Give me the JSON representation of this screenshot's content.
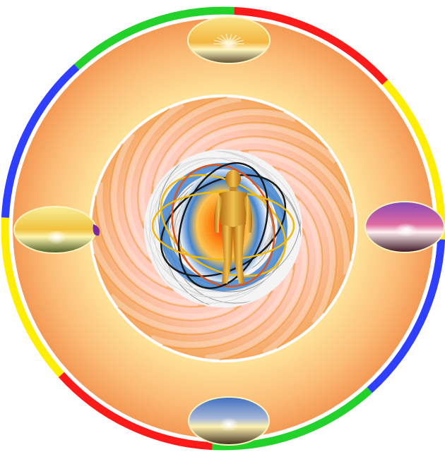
{
  "image": {
    "subject": "mandala-with-human-figure",
    "colors": {
      "ring_segments": [
        "#ff1a1a",
        "#ffee00",
        "#2f3fff",
        "#22d22a",
        "#ff1a1a",
        "#ffee00",
        "#2f3fff",
        "#22d22a"
      ],
      "outer_disc_inner": "#fff8c8",
      "outer_disc_outer": "#f7a15a",
      "spiral_light": "#ffd1c8",
      "spiral_dark": "#f0922e",
      "core_blue": "#3a7fd0",
      "core_fire": "#ff6a10",
      "figure_gold": "#e8a832",
      "orbit_colors": [
        "#1a1a1a",
        "#f2b90a",
        "#e0561a",
        "#1a1a1a",
        "#f2b90a"
      ]
    },
    "sunset_ovals": [
      {
        "position": "top",
        "sky": "#f6d77a",
        "ground": "#5a4a2a"
      },
      {
        "position": "left",
        "sky": "#f3e07a",
        "ground": "#4a5a20"
      },
      {
        "position": "right",
        "sky": "#7a3aa0",
        "ground": "#3a1020"
      },
      {
        "position": "bottom",
        "sky": "#4a7ac8",
        "ground": "#3a2a18"
      }
    ]
  }
}
